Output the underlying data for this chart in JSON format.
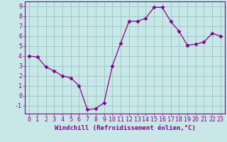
{
  "x": [
    0,
    1,
    2,
    3,
    4,
    5,
    6,
    7,
    8,
    9,
    10,
    11,
    12,
    13,
    14,
    15,
    16,
    17,
    18,
    19,
    20,
    21,
    22,
    23
  ],
  "y": [
    4.0,
    3.9,
    2.9,
    2.5,
    2.0,
    1.8,
    1.0,
    -1.4,
    -1.3,
    -0.7,
    3.0,
    5.3,
    7.5,
    7.5,
    7.8,
    8.9,
    8.9,
    7.5,
    6.5,
    5.1,
    5.2,
    5.4,
    6.3,
    6.0
  ],
  "line_color": "#880088",
  "marker": "D",
  "marker_size": 2.5,
  "bg_color": "#c8e8e8",
  "grid_color": "#a0c8c8",
  "xlabel": "Windchill (Refroidissement éolien,°C)",
  "xlabel_fontsize": 6.5,
  "tick_fontsize": 6.0,
  "ylim": [
    -1.8,
    9.5
  ],
  "xlim": [
    -0.5,
    23.5
  ],
  "yticks": [
    -1,
    0,
    1,
    2,
    3,
    4,
    5,
    6,
    7,
    8,
    9
  ],
  "xticks": [
    0,
    1,
    2,
    3,
    4,
    5,
    6,
    7,
    8,
    9,
    10,
    11,
    12,
    13,
    14,
    15,
    16,
    17,
    18,
    19,
    20,
    21,
    22,
    23
  ]
}
